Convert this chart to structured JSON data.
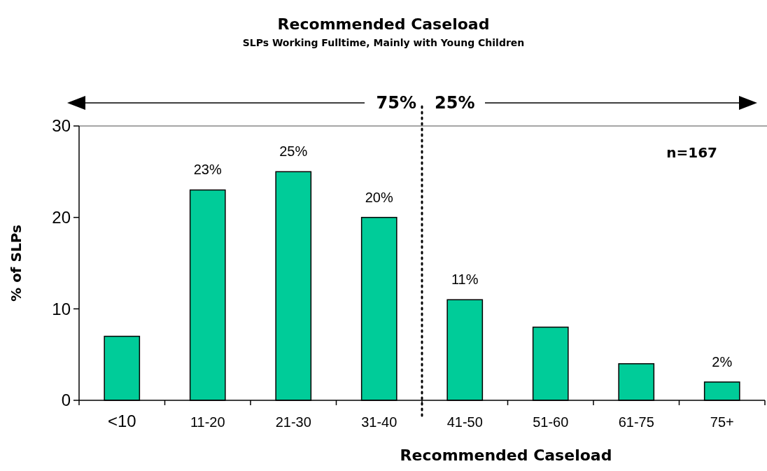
{
  "chart_data": {
    "type": "bar",
    "title": "Recommended Caseload",
    "subtitle": "SLPs Working Fulltime, Mainly with Young Children",
    "xlabel": "Recommended Caseload",
    "ylabel": "% of SLPs",
    "categories": [
      "<10",
      "11-20",
      "21-30",
      "31-40",
      "41-50",
      "51-60",
      "61-75",
      "75+"
    ],
    "values": [
      7,
      23,
      25,
      20,
      11,
      8,
      4,
      2
    ],
    "value_labels": [
      null,
      "23%",
      "25%",
      "20%",
      "11%",
      null,
      null,
      "2%"
    ],
    "color": "#00cc99",
    "ylim": [
      0,
      30
    ],
    "yticks": [
      0,
      10,
      20,
      30
    ],
    "grid": false,
    "annotations": [
      "75%",
      "25%",
      "n=167"
    ]
  }
}
